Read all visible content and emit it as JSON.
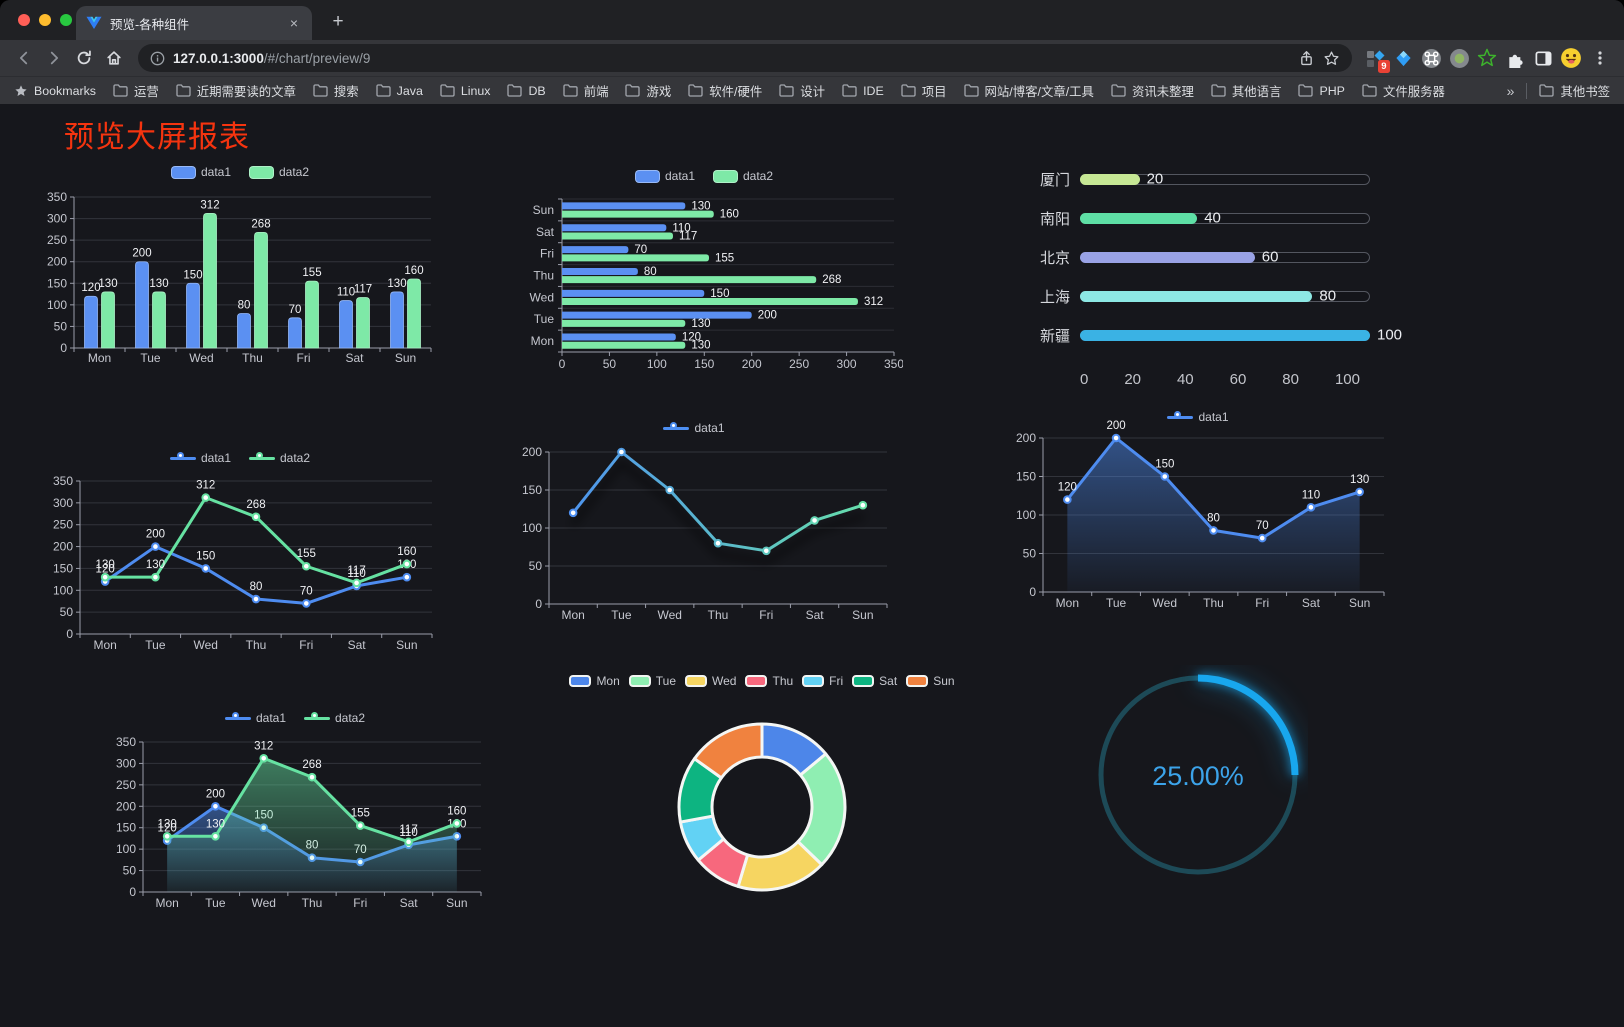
{
  "browser": {
    "tab": {
      "title": "预览-各种组件",
      "close_glyph": "×"
    },
    "new_tab_glyph": "+",
    "url": {
      "host": "127.0.0.1:3000",
      "path": "/#/chart/preview/9"
    },
    "extensions_badge": "9",
    "bookmarks_bar": {
      "bookmarks_label": "Bookmarks",
      "folders": [
        "运营",
        "近期需要读的文章",
        "搜索",
        "Java",
        "Linux",
        "DB",
        "前端",
        "游戏",
        "软件/硬件",
        "设计",
        "IDE",
        "项目",
        "网站/博客/文章/工具",
        "资讯未整理",
        "其他语言",
        "PHP",
        "文件服务器"
      ],
      "overflow_glyph": "»",
      "other_bookmarks_label": "其他书签"
    }
  },
  "page": {
    "title": "预览大屏报表",
    "title_color": "#f5340f"
  },
  "chart_data": [
    {
      "id": "grouped-bar",
      "type": "bar",
      "categories": [
        "Mon",
        "Tue",
        "Wed",
        "Thu",
        "Fri",
        "Sat",
        "Sun"
      ],
      "series": [
        {
          "name": "data1",
          "color": "#5b90f2",
          "values": [
            120,
            200,
            150,
            80,
            70,
            110,
            130
          ]
        },
        {
          "name": "data2",
          "color": "#7ee9a7",
          "values": [
            130,
            130,
            312,
            268,
            155,
            117,
            160
          ]
        }
      ],
      "ylim": [
        0,
        350
      ],
      "ytick": 50,
      "grid": true,
      "value_labels": true,
      "legend_position": "top"
    },
    {
      "id": "horizontal-bar",
      "type": "bar",
      "orientation": "horizontal",
      "categories": [
        "Mon",
        "Tue",
        "Wed",
        "Thu",
        "Fri",
        "Sat",
        "Sun"
      ],
      "series": [
        {
          "name": "data1",
          "color": "#5b90f2",
          "values": [
            120,
            200,
            150,
            80,
            70,
            110,
            130
          ]
        },
        {
          "name": "data2",
          "color": "#7ee9a7",
          "values": [
            130,
            130,
            312,
            268,
            155,
            117,
            160
          ]
        }
      ],
      "xlim": [
        0,
        350
      ],
      "xtick": 50,
      "grid": true,
      "value_labels": true,
      "legend_position": "top"
    },
    {
      "id": "city-progress",
      "type": "bar",
      "subtype": "progress-list",
      "rows": [
        {
          "label": "厦门",
          "value": 20,
          "color": "#c6e794"
        },
        {
          "label": "南阳",
          "value": 40,
          "color": "#5edfa5"
        },
        {
          "label": "北京",
          "value": 60,
          "color": "#99a2e5"
        },
        {
          "label": "上海",
          "value": 80,
          "color": "#8de8e4"
        },
        {
          "label": "新疆",
          "value": 100,
          "color": "#3ab2e4"
        }
      ],
      "xlim": [
        0,
        100
      ],
      "axis_ticks": [
        0,
        20,
        40,
        60,
        80,
        100
      ]
    },
    {
      "id": "two-line",
      "type": "line",
      "categories": [
        "Mon",
        "Tue",
        "Wed",
        "Thu",
        "Fri",
        "Sat",
        "Sun"
      ],
      "series": [
        {
          "name": "data1",
          "color": "#4e8cf0",
          "values": [
            120,
            200,
            150,
            80,
            70,
            110,
            130
          ]
        },
        {
          "name": "data2",
          "color": "#66e2a2",
          "values": [
            130,
            130,
            312,
            268,
            155,
            117,
            160
          ]
        }
      ],
      "ylim": [
        0,
        350
      ],
      "ytick": 50,
      "grid": true,
      "value_labels": true,
      "legend_position": "top"
    },
    {
      "id": "gradient-line",
      "type": "line",
      "categories": [
        "Mon",
        "Tue",
        "Wed",
        "Thu",
        "Fri",
        "Sat",
        "Sun"
      ],
      "series": [
        {
          "name": "data1",
          "color": "#4e8cf0",
          "color_gradient": [
            "#4d8ff2",
            "#68e3a6"
          ],
          "values": [
            120,
            200,
            150,
            80,
            70,
            110,
            130
          ]
        }
      ],
      "ylim": [
        0,
        200
      ],
      "ytick": 50,
      "grid": true,
      "value_labels": false,
      "shadow": true,
      "legend_position": "top"
    },
    {
      "id": "blue-area-line",
      "type": "area",
      "categories": [
        "Mon",
        "Tue",
        "Wed",
        "Thu",
        "Fri",
        "Sat",
        "Sun"
      ],
      "series": [
        {
          "name": "data1",
          "color": "#4e8cf0",
          "area": true,
          "values": [
            120,
            200,
            150,
            80,
            70,
            110,
            130
          ]
        }
      ],
      "ylim": [
        0,
        200
      ],
      "ytick": 50,
      "grid": true,
      "value_labels": true,
      "legend_position": "top"
    },
    {
      "id": "two-area-line",
      "type": "area",
      "categories": [
        "Mon",
        "Tue",
        "Wed",
        "Thu",
        "Fri",
        "Sat",
        "Sun"
      ],
      "series": [
        {
          "name": "data1",
          "color": "#4e8cf0",
          "area": true,
          "values": [
            120,
            200,
            150,
            80,
            70,
            110,
            130
          ]
        },
        {
          "name": "data2",
          "color": "#66e2a2",
          "area": true,
          "values": [
            130,
            130,
            312,
            268,
            155,
            117,
            160
          ]
        }
      ],
      "ylim": [
        0,
        350
      ],
      "ytick": 50,
      "grid": true,
      "value_labels": true,
      "legend_position": "top"
    },
    {
      "id": "donut",
      "type": "pie",
      "inner_radius_ratio": 0.6,
      "slices": [
        {
          "label": "Mon",
          "value": 120,
          "color": "#4d86e9"
        },
        {
          "label": "Tue",
          "value": 200,
          "color": "#8feeb2"
        },
        {
          "label": "Wed",
          "value": 150,
          "color": "#f6d561"
        },
        {
          "label": "Thu",
          "value": 80,
          "color": "#f7687d"
        },
        {
          "label": "Fri",
          "value": 70,
          "color": "#62d2f4"
        },
        {
          "label": "Sat",
          "value": 110,
          "color": "#0db481"
        },
        {
          "label": "Sun",
          "value": 130,
          "color": "#f0823f"
        }
      ],
      "legend_position": "top"
    },
    {
      "id": "gauge",
      "type": "gauge",
      "value": 25,
      "label": "25.00%",
      "color": "#18a7ee",
      "track_color": "#1d4a57",
      "text_color": "#3ca3e9"
    }
  ]
}
